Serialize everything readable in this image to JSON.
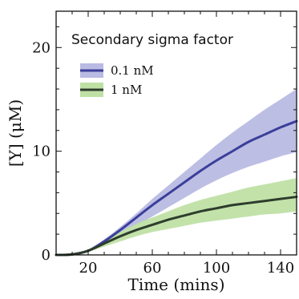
{
  "chart_data": {
    "type": "line",
    "title": "",
    "xlabel": "Time (mins)",
    "ylabel": "[Y] (μM)",
    "xlim": [
      0,
      150
    ],
    "ylim": [
      0,
      23.5
    ],
    "xticks": [
      20,
      60,
      100,
      140
    ],
    "yticks": [
      0,
      10,
      20
    ],
    "legend_title": "Secondary sigma factor",
    "legend_position": "top-left",
    "grid": false,
    "series": [
      {
        "name": "0.1 nM",
        "color": "#3a3f9a",
        "band_color": "#b9bbe3",
        "x": [
          0,
          10,
          20,
          30,
          40,
          50,
          60,
          70,
          80,
          90,
          100,
          110,
          120,
          130,
          140,
          150
        ],
        "y": [
          0,
          0.05,
          0.4,
          1.3,
          2.4,
          3.6,
          4.8,
          5.9,
          7.0,
          8.1,
          9.1,
          10.0,
          10.9,
          11.6,
          12.3,
          12.9
        ],
        "lower": [
          0,
          0.05,
          0.35,
          1.1,
          1.9,
          2.8,
          3.7,
          4.6,
          5.5,
          6.4,
          7.2,
          7.9,
          8.5,
          9.0,
          9.5,
          9.9
        ],
        "upper": [
          0,
          0.06,
          0.5,
          1.5,
          2.7,
          4.0,
          5.4,
          6.7,
          8.0,
          9.3,
          10.6,
          11.8,
          12.9,
          14.0,
          15.0,
          16.0
        ]
      },
      {
        "name": "1 nM",
        "color": "#2e3d2c",
        "band_color": "#bfe0a5",
        "x": [
          0,
          10,
          20,
          30,
          40,
          50,
          60,
          70,
          80,
          90,
          100,
          110,
          120,
          130,
          140,
          150
        ],
        "y": [
          0,
          0.05,
          0.4,
          1.1,
          1.8,
          2.4,
          2.9,
          3.4,
          3.8,
          4.2,
          4.5,
          4.8,
          5.0,
          5.2,
          5.4,
          5.6
        ],
        "lower": [
          0,
          0.04,
          0.3,
          0.8,
          1.3,
          1.8,
          2.2,
          2.5,
          2.8,
          3.1,
          3.3,
          3.5,
          3.7,
          3.9,
          4.0,
          4.2
        ],
        "upper": [
          0,
          0.06,
          0.5,
          1.3,
          2.2,
          3.0,
          3.6,
          4.2,
          4.8,
          5.3,
          5.7,
          6.1,
          6.5,
          6.8,
          7.1,
          7.4
        ]
      }
    ]
  }
}
